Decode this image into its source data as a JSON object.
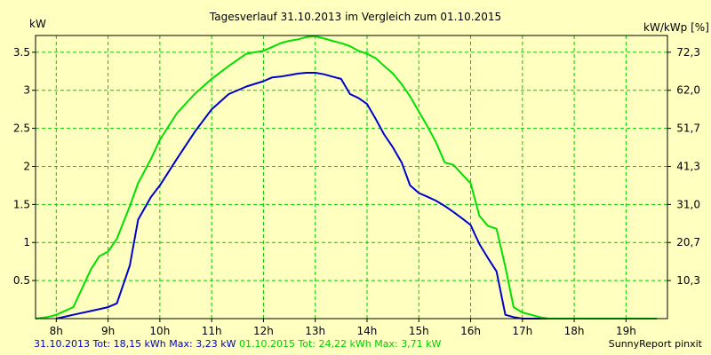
{
  "chart_data": {
    "type": "line",
    "title": "Tagesverlauf 31.10.2013 im Vergleich zum 01.10.2015",
    "ylabel": "kW",
    "y2label": "kW/kWp [%]",
    "xlim": [
      7.6,
      19.8
    ],
    "ylim": [
      0,
      3.72
    ],
    "x_ticks": [
      8,
      9,
      10,
      11,
      12,
      13,
      14,
      15,
      16,
      17,
      18,
      19
    ],
    "x_tick_labels": [
      "8h",
      "9h",
      "10h",
      "11h",
      "12h",
      "13h",
      "14h",
      "15h",
      "16h",
      "17h",
      "18h",
      "19h"
    ],
    "y_ticks": [
      0.5,
      1,
      1.5,
      2,
      2.5,
      3,
      3.5
    ],
    "y_tick_labels": [
      "0.5",
      "1",
      "1.5",
      "2",
      "2.5",
      "3",
      "3.5"
    ],
    "y2_ticks": [
      0.5,
      1,
      1.5,
      2,
      2.5,
      3,
      3.5
    ],
    "y2_tick_labels": [
      "10,3",
      "20,7",
      "31,0",
      "41,3",
      "51,7",
      "62,0",
      "72,3"
    ],
    "grid": true,
    "series": [
      {
        "name": "31.10.2013",
        "color": "#0000cc",
        "x": [
          8.0,
          8.33,
          8.67,
          9.0,
          9.17,
          9.42,
          9.58,
          9.83,
          10.0,
          10.33,
          10.67,
          11.0,
          11.33,
          11.67,
          12.0,
          12.17,
          12.33,
          12.5,
          12.67,
          12.83,
          13.0,
          13.17,
          13.33,
          13.5,
          13.67,
          13.83,
          14.0,
          14.17,
          14.33,
          14.5,
          14.67,
          14.83,
          15.0,
          15.17,
          15.33,
          15.5,
          15.67,
          15.83,
          16.0,
          16.17,
          16.33,
          16.5,
          16.67,
          16.83,
          17.0,
          17.17,
          17.33,
          17.5,
          17.67,
          17.83
        ],
        "values": [
          0.0,
          0.05,
          0.1,
          0.15,
          0.2,
          0.7,
          1.3,
          1.6,
          1.75,
          2.1,
          2.45,
          2.75,
          2.95,
          3.05,
          3.12,
          3.17,
          3.18,
          3.2,
          3.22,
          3.23,
          3.23,
          3.21,
          3.18,
          3.15,
          2.95,
          2.9,
          2.82,
          2.62,
          2.42,
          2.25,
          2.05,
          1.75,
          1.65,
          1.6,
          1.55,
          1.48,
          1.4,
          1.32,
          1.23,
          0.98,
          0.8,
          0.62,
          0.05,
          0.02,
          0.0,
          0.0,
          0.0,
          0.0,
          0.0,
          0.0
        ]
      },
      {
        "name": "01.10.2015",
        "color": "#00e000",
        "x": [
          7.6,
          7.83,
          8.0,
          8.33,
          8.67,
          8.83,
          9.0,
          9.17,
          9.42,
          9.58,
          9.83,
          10.0,
          10.33,
          10.67,
          11.0,
          11.33,
          11.67,
          12.0,
          12.17,
          12.33,
          12.5,
          12.67,
          12.83,
          13.0,
          13.17,
          13.33,
          13.5,
          13.67,
          13.83,
          14.0,
          14.17,
          14.33,
          14.5,
          14.67,
          14.83,
          15.0,
          15.17,
          15.33,
          15.5,
          15.67,
          15.83,
          16.0,
          16.17,
          16.33,
          16.5,
          16.67,
          16.83,
          17.0,
          17.17,
          17.33,
          17.5,
          17.67,
          17.83,
          18.0,
          18.33,
          18.67,
          19.0,
          19.33,
          19.6
        ],
        "values": [
          0.0,
          0.02,
          0.05,
          0.15,
          0.65,
          0.82,
          0.88,
          1.05,
          1.48,
          1.78,
          2.1,
          2.35,
          2.7,
          2.95,
          3.15,
          3.32,
          3.48,
          3.52,
          3.57,
          3.62,
          3.65,
          3.67,
          3.7,
          3.71,
          3.68,
          3.65,
          3.62,
          3.58,
          3.52,
          3.48,
          3.42,
          3.32,
          3.22,
          3.08,
          2.92,
          2.72,
          2.52,
          2.32,
          2.05,
          2.02,
          1.9,
          1.78,
          1.35,
          1.22,
          1.18,
          0.68,
          0.15,
          0.08,
          0.05,
          0.02,
          0.0,
          0.0,
          0.0,
          0.0,
          0.0,
          0.0,
          0.0,
          0.0,
          0.0
        ]
      }
    ]
  },
  "footer": {
    "series1_prefix": "31.10.2013 Tot: 18,15 kWh Max: 3,23 kW",
    "series2_prefix": "01.10.2015 Tot: 24,22 kWh Max: 3,71 kW",
    "credit": "SunnyReport pinxit"
  }
}
